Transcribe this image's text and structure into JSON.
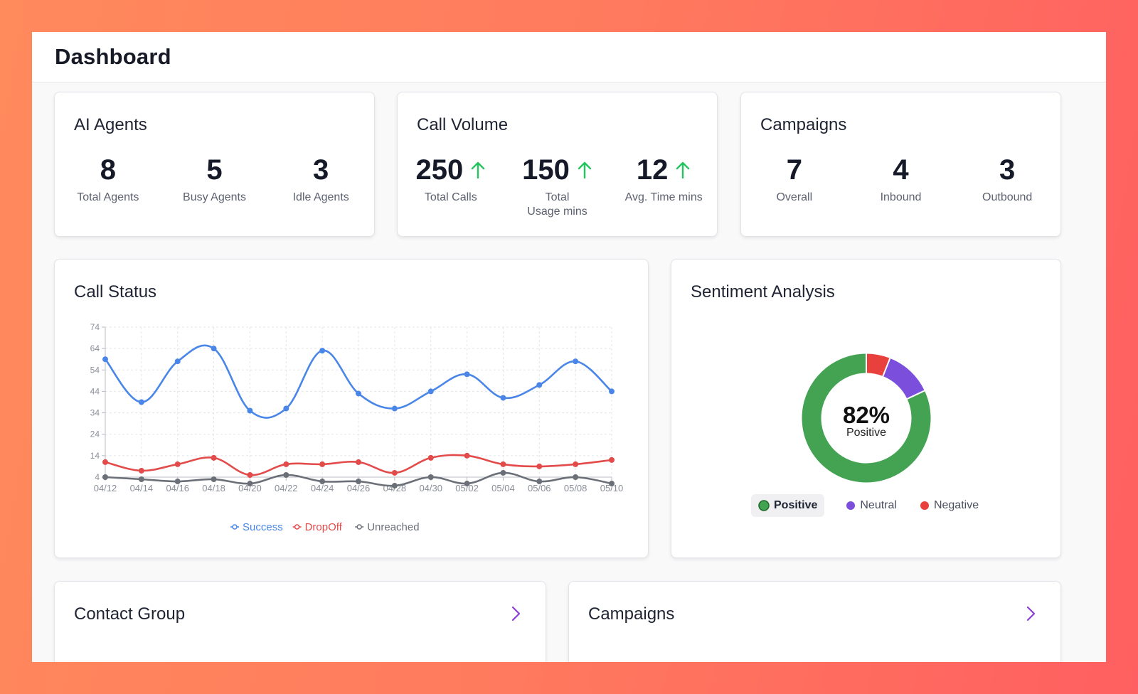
{
  "header": {
    "title": "Dashboard"
  },
  "ai_agents": {
    "title": "AI Agents",
    "stats": [
      {
        "value": "8",
        "label": "Total Agents"
      },
      {
        "value": "5",
        "label": "Busy Agents"
      },
      {
        "value": "3",
        "label": "Idle Agents"
      }
    ]
  },
  "call_volume": {
    "title": "Call Volume",
    "stats": [
      {
        "value": "250",
        "label": "Total Calls",
        "trend": "up"
      },
      {
        "value": "150",
        "label": "Total\nUsage mins",
        "trend": "up"
      },
      {
        "value": "12",
        "label": "Avg. Time mins",
        "trend": "up"
      }
    ]
  },
  "campaigns_stats": {
    "title": "Campaigns",
    "stats": [
      {
        "value": "7",
        "label": "Overall"
      },
      {
        "value": "4",
        "label": "Inbound"
      },
      {
        "value": "3",
        "label": "Outbound"
      }
    ]
  },
  "call_status": {
    "title": "Call Status"
  },
  "sentiment": {
    "title": "Sentiment Analysis",
    "center_value": "82%",
    "center_label": "Positive",
    "legend": [
      {
        "label": "Positive",
        "color": "#43a352",
        "active": true
      },
      {
        "label": "Neutral",
        "color": "#7b4fdc",
        "active": false
      },
      {
        "label": "Negative",
        "color": "#e8403c",
        "active": false
      }
    ]
  },
  "contact_group": {
    "title": "Contact Group"
  },
  "campaigns_list": {
    "title": "Campaigns"
  },
  "colors": {
    "success": "#4a86e8",
    "dropoff": "#e34a4a",
    "unreached": "#6b6f78",
    "trend_up": "#22c55e",
    "chevron": "#8b3fd9"
  },
  "chart_data": [
    {
      "type": "line",
      "x": [
        "04/12",
        "04/14",
        "04/16",
        "04/18",
        "04/20",
        "04/22",
        "04/24",
        "04/26",
        "04/28",
        "04/30",
        "05/02",
        "05/04",
        "05/06",
        "05/08",
        "05/10"
      ],
      "yticks": [
        4,
        14,
        24,
        34,
        44,
        54,
        64,
        74
      ],
      "ylim": [
        4,
        74
      ],
      "grid": true,
      "legend": "bottom",
      "series": [
        {
          "name": "Success",
          "color": "#4a86e8",
          "values": [
            59,
            39,
            58,
            64,
            35,
            36,
            63,
            43,
            36,
            44,
            52,
            41,
            47,
            58,
            44
          ]
        },
        {
          "name": "DropOff",
          "color": "#e34a4a",
          "values": [
            11,
            7,
            10,
            13,
            5,
            10,
            10,
            11,
            6,
            13,
            14,
            10,
            9,
            10,
            12
          ]
        },
        {
          "name": "Unreached",
          "color": "#6b6f78",
          "values": [
            4,
            3,
            2,
            3,
            1,
            5,
            2,
            2,
            0,
            4,
            1,
            6,
            2,
            4,
            1
          ]
        }
      ]
    },
    {
      "type": "pie",
      "categories": [
        "Positive",
        "Neutral",
        "Negative"
      ],
      "values": [
        82,
        12,
        6
      ]
    }
  ]
}
